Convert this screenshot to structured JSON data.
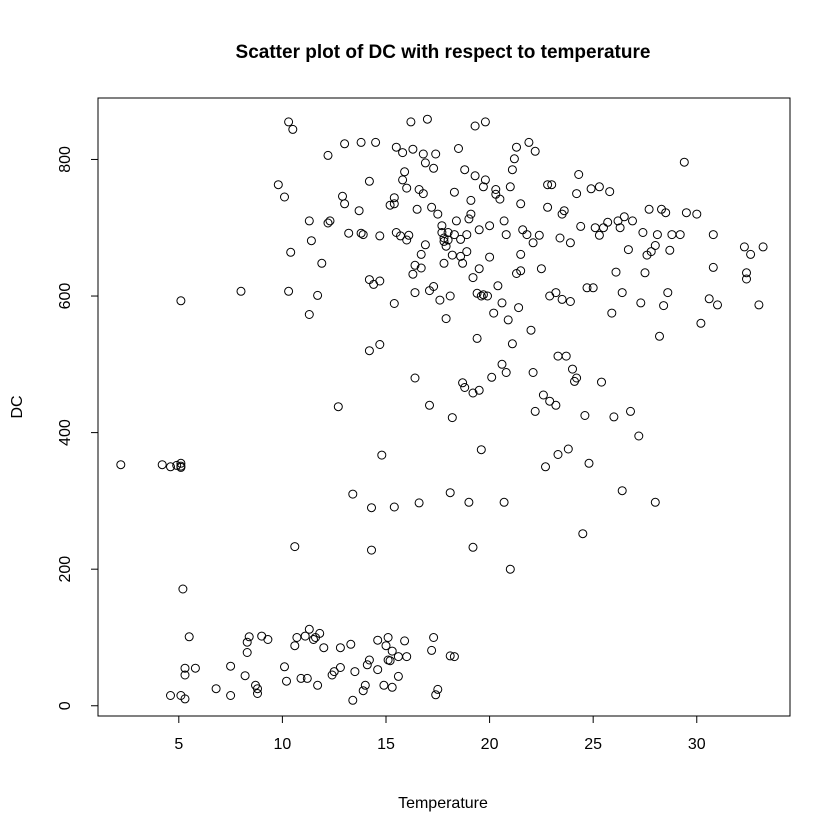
{
  "chart_data": {
    "type": "scatter",
    "title": "Scatter plot of DC with respect to temperature",
    "xlabel": "Temperature",
    "ylabel": "DC",
    "xlim": [
      1.1,
      34.5
    ],
    "ylim": [
      -15,
      890
    ],
    "xticks": [
      5,
      10,
      15,
      20,
      25,
      30
    ],
    "yticks": [
      0,
      200,
      400,
      600,
      800
    ],
    "grid": false,
    "legend": "none",
    "marker": "open-circle",
    "color": "#000000",
    "points": [
      [
        2.2,
        353
      ],
      [
        4.2,
        353
      ],
      [
        4.6,
        350
      ],
      [
        4.9,
        352
      ],
      [
        5.1,
        355
      ],
      [
        5.1,
        351
      ],
      [
        5.1,
        349
      ],
      [
        5.1,
        593
      ],
      [
        5.2,
        171
      ],
      [
        4.6,
        15
      ],
      [
        5.1,
        15
      ],
      [
        5.3,
        10
      ],
      [
        5.3,
        45
      ],
      [
        5.3,
        55
      ],
      [
        5.5,
        101
      ],
      [
        5.8,
        55
      ],
      [
        6.8,
        25
      ],
      [
        7.5,
        15
      ],
      [
        7.5,
        58
      ],
      [
        8.0,
        607
      ],
      [
        8.2,
        44
      ],
      [
        8.3,
        93
      ],
      [
        8.4,
        101
      ],
      [
        8.3,
        78
      ],
      [
        8.7,
        30
      ],
      [
        8.8,
        25
      ],
      [
        8.8,
        18
      ],
      [
        9.0,
        102
      ],
      [
        9.3,
        97
      ],
      [
        9.8,
        763
      ],
      [
        10.1,
        745
      ],
      [
        10.1,
        57
      ],
      [
        10.2,
        36
      ],
      [
        10.3,
        607
      ],
      [
        10.3,
        855
      ],
      [
        10.4,
        664
      ],
      [
        10.5,
        844
      ],
      [
        10.6,
        233
      ],
      [
        10.6,
        88
      ],
      [
        10.7,
        100
      ],
      [
        10.9,
        40
      ],
      [
        11.1,
        102
      ],
      [
        11.2,
        40
      ],
      [
        11.3,
        573
      ],
      [
        11.3,
        710
      ],
      [
        11.3,
        112
      ],
      [
        11.4,
        681
      ],
      [
        11.5,
        97
      ],
      [
        11.6,
        100
      ],
      [
        11.7,
        601
      ],
      [
        11.7,
        30
      ],
      [
        11.8,
        106
      ],
      [
        11.9,
        648
      ],
      [
        12.0,
        85
      ],
      [
        12.2,
        806
      ],
      [
        12.2,
        707
      ],
      [
        12.3,
        710
      ],
      [
        12.4,
        45
      ],
      [
        12.5,
        50
      ],
      [
        12.7,
        438
      ],
      [
        12.8,
        56
      ],
      [
        12.8,
        85
      ],
      [
        12.9,
        746
      ],
      [
        13.0,
        823
      ],
      [
        13.0,
        735
      ],
      [
        13.2,
        692
      ],
      [
        13.3,
        90
      ],
      [
        13.4,
        310
      ],
      [
        13.4,
        8
      ],
      [
        13.5,
        50
      ],
      [
        13.7,
        725
      ],
      [
        13.8,
        825
      ],
      [
        13.8,
        692
      ],
      [
        13.9,
        690
      ],
      [
        13.9,
        22
      ],
      [
        14.0,
        30
      ],
      [
        14.1,
        60
      ],
      [
        14.2,
        768
      ],
      [
        14.2,
        67
      ],
      [
        14.2,
        624
      ],
      [
        14.2,
        520
      ],
      [
        14.3,
        290
      ],
      [
        14.3,
        228
      ],
      [
        14.4,
        617
      ],
      [
        14.5,
        825
      ],
      [
        14.6,
        53
      ],
      [
        14.6,
        96
      ],
      [
        14.7,
        688
      ],
      [
        14.7,
        529
      ],
      [
        14.7,
        622
      ],
      [
        14.8,
        367
      ],
      [
        14.9,
        30
      ],
      [
        15.0,
        88
      ],
      [
        15.1,
        100
      ],
      [
        15.1,
        67
      ],
      [
        15.2,
        66
      ],
      [
        15.2,
        733
      ],
      [
        15.3,
        27
      ],
      [
        15.3,
        80
      ],
      [
        15.4,
        735
      ],
      [
        15.4,
        589
      ],
      [
        15.4,
        744
      ],
      [
        15.4,
        291
      ],
      [
        15.5,
        818
      ],
      [
        15.5,
        693
      ],
      [
        15.6,
        43
      ],
      [
        15.6,
        72
      ],
      [
        15.7,
        688
      ],
      [
        15.8,
        770
      ],
      [
        15.8,
        810
      ],
      [
        15.9,
        782
      ],
      [
        15.9,
        95
      ],
      [
        16.0,
        758
      ],
      [
        16.0,
        682
      ],
      [
        16.0,
        72
      ],
      [
        16.1,
        689
      ],
      [
        16.2,
        855
      ],
      [
        16.3,
        632
      ],
      [
        16.3,
        815
      ],
      [
        16.4,
        480
      ],
      [
        16.4,
        645
      ],
      [
        16.4,
        605
      ],
      [
        16.5,
        727
      ],
      [
        16.6,
        756
      ],
      [
        16.6,
        297
      ],
      [
        16.7,
        661
      ],
      [
        16.7,
        641
      ],
      [
        16.8,
        750
      ],
      [
        16.8,
        808
      ],
      [
        16.9,
        675
      ],
      [
        16.9,
        795
      ],
      [
        17.0,
        859
      ],
      [
        17.1,
        440
      ],
      [
        17.1,
        608
      ],
      [
        17.2,
        730
      ],
      [
        17.2,
        81
      ],
      [
        17.3,
        614
      ],
      [
        17.3,
        100
      ],
      [
        17.3,
        787
      ],
      [
        17.4,
        808
      ],
      [
        17.4,
        16
      ],
      [
        17.5,
        720
      ],
      [
        17.5,
        24
      ],
      [
        17.6,
        594
      ],
      [
        17.7,
        703
      ],
      [
        17.7,
        693
      ],
      [
        17.8,
        680
      ],
      [
        17.8,
        685
      ],
      [
        17.8,
        648
      ],
      [
        17.9,
        673
      ],
      [
        17.9,
        567
      ],
      [
        18.0,
        682
      ],
      [
        18.0,
        693
      ],
      [
        18.1,
        312
      ],
      [
        18.1,
        600
      ],
      [
        18.1,
        73
      ],
      [
        18.2,
        660
      ],
      [
        18.2,
        422
      ],
      [
        18.3,
        752
      ],
      [
        18.3,
        690
      ],
      [
        18.3,
        72
      ],
      [
        18.4,
        710
      ],
      [
        18.5,
        816
      ],
      [
        18.6,
        658
      ],
      [
        18.6,
        683
      ],
      [
        18.7,
        648
      ],
      [
        18.7,
        473
      ],
      [
        18.8,
        466
      ],
      [
        18.8,
        785
      ],
      [
        18.9,
        690
      ],
      [
        18.9,
        665
      ],
      [
        19.0,
        713
      ],
      [
        19.0,
        298
      ],
      [
        19.1,
        740
      ],
      [
        19.1,
        720
      ],
      [
        19.2,
        232
      ],
      [
        19.2,
        627
      ],
      [
        19.2,
        458
      ],
      [
        19.3,
        776
      ],
      [
        19.3,
        849
      ],
      [
        19.4,
        538
      ],
      [
        19.4,
        604
      ],
      [
        19.5,
        697
      ],
      [
        19.5,
        462
      ],
      [
        19.5,
        640
      ],
      [
        19.6,
        600
      ],
      [
        19.6,
        375
      ],
      [
        19.7,
        602
      ],
      [
        19.7,
        760
      ],
      [
        19.8,
        855
      ],
      [
        19.8,
        770
      ],
      [
        19.9,
        600
      ],
      [
        20.0,
        703
      ],
      [
        20.0,
        657
      ],
      [
        20.1,
        481
      ],
      [
        20.2,
        575
      ],
      [
        20.3,
        756
      ],
      [
        20.3,
        749
      ],
      [
        20.4,
        615
      ],
      [
        20.5,
        742
      ],
      [
        20.6,
        590
      ],
      [
        20.6,
        500
      ],
      [
        20.7,
        298
      ],
      [
        20.7,
        710
      ],
      [
        20.8,
        690
      ],
      [
        20.8,
        488
      ],
      [
        20.9,
        565
      ],
      [
        21.0,
        200
      ],
      [
        21.0,
        760
      ],
      [
        21.1,
        530
      ],
      [
        21.1,
        785
      ],
      [
        21.2,
        801
      ],
      [
        21.3,
        633
      ],
      [
        21.3,
        818
      ],
      [
        21.4,
        583
      ],
      [
        21.5,
        661
      ],
      [
        21.5,
        735
      ],
      [
        21.5,
        637
      ],
      [
        21.6,
        697
      ],
      [
        21.8,
        690
      ],
      [
        21.9,
        825
      ],
      [
        22.0,
        550
      ],
      [
        22.1,
        488
      ],
      [
        22.1,
        678
      ],
      [
        22.2,
        812
      ],
      [
        22.2,
        431
      ],
      [
        22.4,
        689
      ],
      [
        22.5,
        640
      ],
      [
        22.6,
        455
      ],
      [
        22.7,
        350
      ],
      [
        22.8,
        730
      ],
      [
        22.8,
        763
      ],
      [
        22.9,
        600
      ],
      [
        22.9,
        446
      ],
      [
        23.0,
        763
      ],
      [
        23.2,
        605
      ],
      [
        23.2,
        440
      ],
      [
        23.3,
        512
      ],
      [
        23.3,
        368
      ],
      [
        23.4,
        685
      ],
      [
        23.5,
        595
      ],
      [
        23.5,
        720
      ],
      [
        23.6,
        725
      ],
      [
        23.7,
        512
      ],
      [
        23.8,
        376
      ],
      [
        23.9,
        678
      ],
      [
        23.9,
        592
      ],
      [
        24.0,
        493
      ],
      [
        24.1,
        475
      ],
      [
        24.2,
        480
      ],
      [
        24.2,
        750
      ],
      [
        24.3,
        778
      ],
      [
        24.4,
        702
      ],
      [
        24.5,
        252
      ],
      [
        24.6,
        425
      ],
      [
        24.7,
        612
      ],
      [
        24.8,
        355
      ],
      [
        24.9,
        757
      ],
      [
        25.0,
        612
      ],
      [
        25.1,
        700
      ],
      [
        25.3,
        689
      ],
      [
        25.3,
        760
      ],
      [
        25.4,
        474
      ],
      [
        25.5,
        700
      ],
      [
        25.7,
        708
      ],
      [
        25.8,
        753
      ],
      [
        25.9,
        575
      ],
      [
        26.0,
        423
      ],
      [
        26.1,
        635
      ],
      [
        26.2,
        710
      ],
      [
        26.3,
        700
      ],
      [
        26.4,
        315
      ],
      [
        26.4,
        605
      ],
      [
        26.5,
        716
      ],
      [
        26.7,
        668
      ],
      [
        26.8,
        431
      ],
      [
        26.9,
        710
      ],
      [
        27.2,
        395
      ],
      [
        27.3,
        590
      ],
      [
        27.4,
        693
      ],
      [
        27.5,
        634
      ],
      [
        27.6,
        660
      ],
      [
        27.7,
        727
      ],
      [
        27.8,
        665
      ],
      [
        28.0,
        674
      ],
      [
        28.0,
        298
      ],
      [
        28.1,
        690
      ],
      [
        28.2,
        541
      ],
      [
        28.3,
        727
      ],
      [
        28.4,
        586
      ],
      [
        28.5,
        722
      ],
      [
        28.6,
        605
      ],
      [
        28.7,
        667
      ],
      [
        28.8,
        690
      ],
      [
        29.2,
        690
      ],
      [
        29.4,
        796
      ],
      [
        29.5,
        722
      ],
      [
        30.0,
        720
      ],
      [
        30.2,
        560
      ],
      [
        30.6,
        596
      ],
      [
        30.8,
        642
      ],
      [
        30.8,
        690
      ],
      [
        31.0,
        587
      ],
      [
        32.3,
        672
      ],
      [
        32.4,
        634
      ],
      [
        32.4,
        625
      ],
      [
        32.6,
        661
      ],
      [
        33.0,
        587
      ],
      [
        33.2,
        672
      ]
    ]
  }
}
